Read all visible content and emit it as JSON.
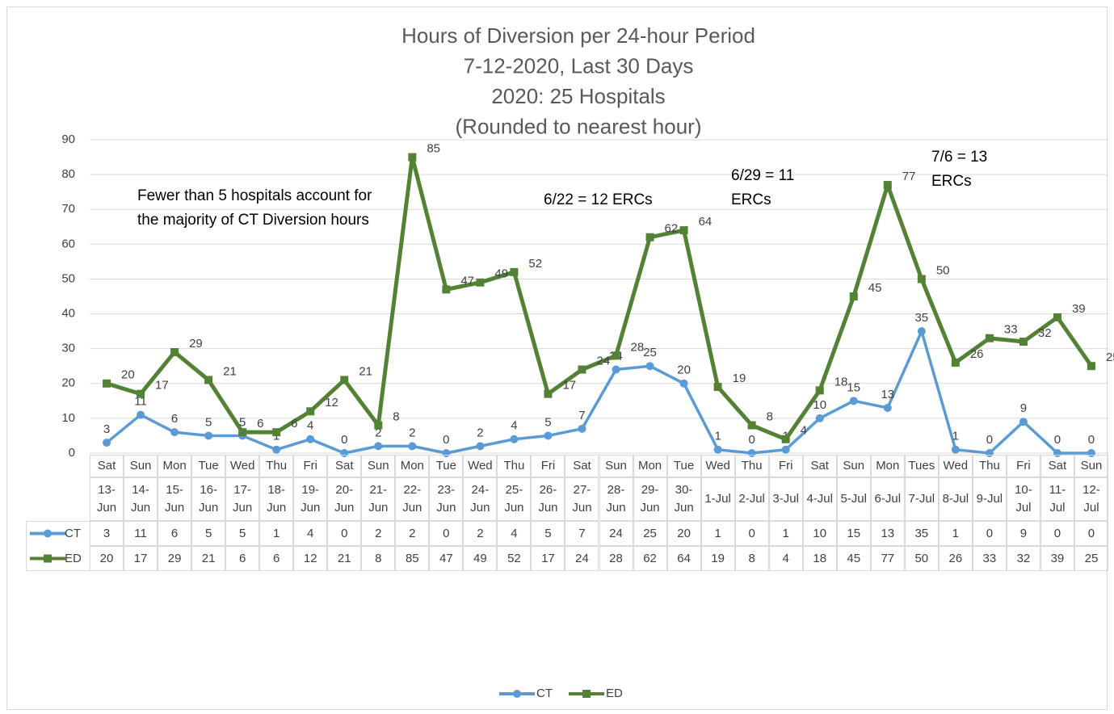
{
  "chart_data": {
    "type": "line",
    "title": [
      "Hours of Diversion per 24-hour Period",
      "7-12-2020, Last 30 Days",
      "2020:  25 Hospitals",
      "(Rounded to nearest hour)"
    ],
    "weekdays": [
      "Sat",
      "Sun",
      "Mon",
      "Tue",
      "Wed",
      "Thu",
      "Fri",
      "Sat",
      "Sun",
      "Mon",
      "Tue",
      "Wed",
      "Thu",
      "Fri",
      "Sat",
      "Sun",
      "Mon",
      "Tue",
      "Wed",
      "Thu",
      "Fri",
      "Sat",
      "Sun",
      "Mon",
      "Tues",
      "Wed",
      "Thu",
      "Fri",
      "Sat",
      "Sun"
    ],
    "categories": [
      "13-Jun",
      "14-Jun",
      "15-Jun",
      "16-Jun",
      "17-Jun",
      "18-Jun",
      "19-Jun",
      "20-Jun",
      "21-Jun",
      "22-Jun",
      "23-Jun",
      "24-Jun",
      "25-Jun",
      "26-Jun",
      "27-Jun",
      "28-Jun",
      "29-Jun",
      "30-Jun",
      "1-Jul",
      "2-Jul",
      "3-Jul",
      "4-Jul",
      "5-Jul",
      "6-Jul",
      "7-Jul",
      "8-Jul",
      "9-Jul",
      "10-Jul",
      "11-Jul",
      "12-Jul"
    ],
    "series": [
      {
        "name": "CT",
        "color": "#5b9bd5",
        "marker": "circle",
        "values": [
          3,
          11,
          6,
          5,
          5,
          1,
          4,
          0,
          2,
          2,
          0,
          2,
          4,
          5,
          7,
          24,
          25,
          20,
          1,
          0,
          1,
          10,
          15,
          13,
          35,
          1,
          0,
          9,
          0,
          0
        ]
      },
      {
        "name": "ED",
        "color": "#548235",
        "marker": "square",
        "values": [
          20,
          17,
          29,
          21,
          6,
          6,
          12,
          21,
          8,
          85,
          47,
          49,
          52,
          17,
          24,
          28,
          62,
          64,
          19,
          8,
          4,
          18,
          45,
          77,
          50,
          26,
          33,
          32,
          39,
          25
        ]
      }
    ],
    "ylim": [
      0,
      90
    ],
    "yticks": [
      0,
      10,
      20,
      30,
      40,
      50,
      60,
      70,
      80,
      90
    ],
    "grid": true,
    "legend": "bottom",
    "annotations": [
      "Fewer than 5 hospitals account for the majority of CT Diversion hours",
      "6/22 = 12 ERCs",
      "6/29 = 11 ERCs",
      "7/6 = 13 ERCs"
    ]
  }
}
